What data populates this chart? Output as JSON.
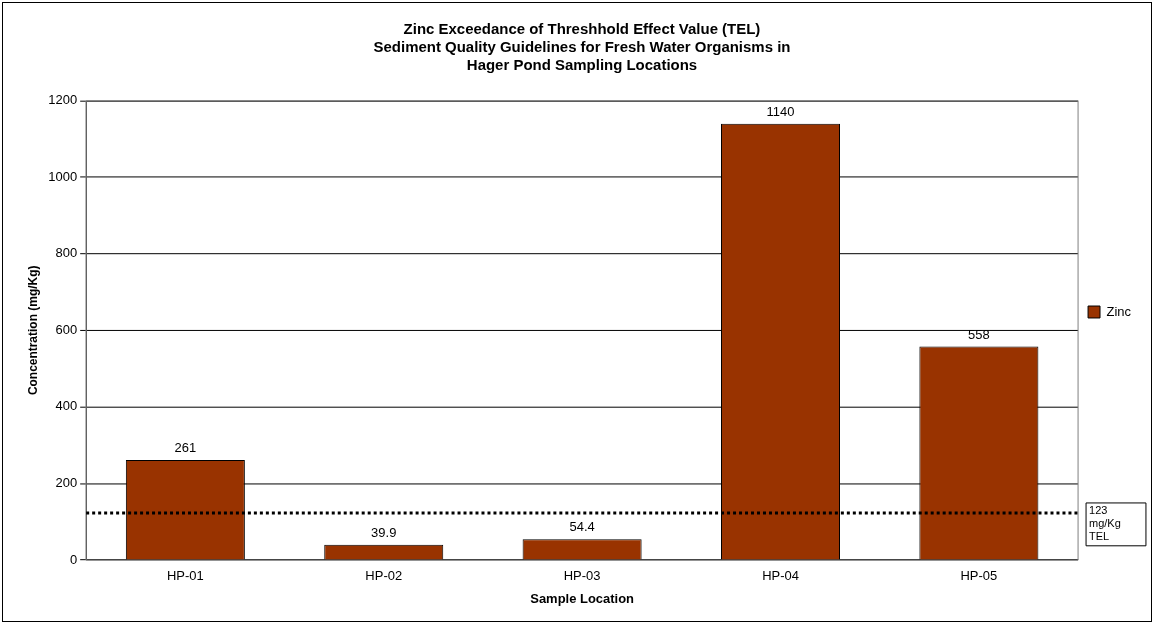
{
  "chart_data": {
    "type": "bar",
    "title": "Zinc Exceedance of Threshhold Effect Value (TEL)\nSediment Quality Guidelines for Fresh Water Organisms in\nHager Pond Sampling Locations",
    "xlabel": "Sample Location",
    "ylabel": "Concentration (mg/Kg)",
    "categories": [
      "HP-01",
      "HP-02",
      "HP-03",
      "HP-04",
      "HP-05"
    ],
    "series": [
      {
        "name": "Zinc",
        "color": "#993300",
        "values": [
          261,
          39.9,
          54.4,
          1140,
          558
        ]
      }
    ],
    "ylim": [
      0,
      1200
    ],
    "yticks": [
      0,
      200,
      400,
      600,
      800,
      1000,
      1200
    ],
    "grid": "y",
    "legend": "right",
    "data_labels": true,
    "ref_lines": [
      {
        "axis": "y",
        "value": 123,
        "label": "123 mg/Kg TEL",
        "line_style": "dotted",
        "color": "#000000"
      }
    ]
  }
}
